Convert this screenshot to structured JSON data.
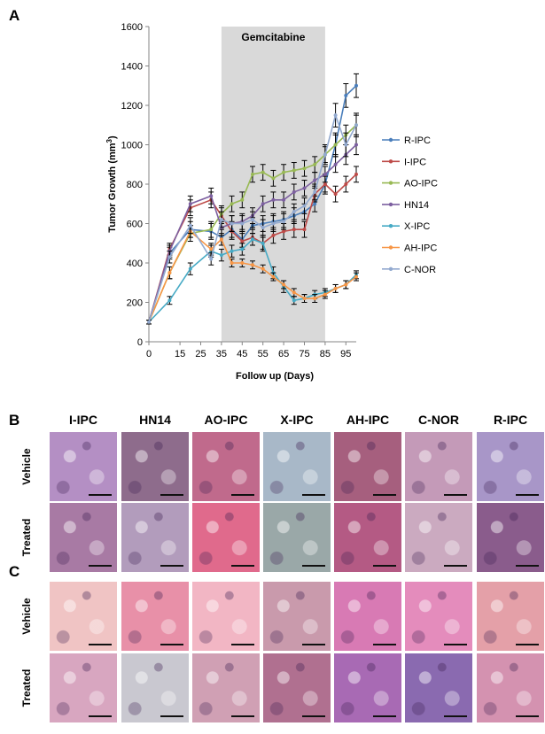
{
  "panels": {
    "a": "A",
    "b": "B",
    "c": "C"
  },
  "chart_data": {
    "type": "line",
    "annotation": "Gemcitabine",
    "shaded_x_range": [
      35,
      85
    ],
    "xlabel": "Follow up (Days)",
    "ylabel": "Tumor Growth (mm³)",
    "xlim": [
      0,
      100
    ],
    "ylim": [
      0,
      1600
    ],
    "x_ticks": [
      0,
      15,
      25,
      35,
      45,
      55,
      65,
      75,
      85,
      95
    ],
    "y_ticks": [
      0,
      200,
      400,
      600,
      800,
      1000,
      1200,
      1400,
      1600
    ],
    "grid": false,
    "legend_position": "right",
    "series": [
      {
        "name": "R-IPC",
        "color": "#4a7ebb",
        "x": [
          0,
          10,
          20,
          30,
          35,
          40,
          45,
          50,
          55,
          60,
          65,
          70,
          75,
          80,
          85,
          90,
          95,
          100
        ],
        "y": [
          100,
          450,
          570,
          560,
          530,
          570,
          520,
          590,
          600,
          610,
          620,
          640,
          660,
          700,
          800,
          1000,
          1250,
          1300
        ],
        "err": [
          10,
          30,
          40,
          40,
          40,
          40,
          40,
          40,
          40,
          40,
          40,
          40,
          40,
          40,
          50,
          60,
          60,
          60
        ]
      },
      {
        "name": "I-IPC",
        "color": "#be4b48",
        "x": [
          0,
          10,
          20,
          30,
          35,
          40,
          45,
          50,
          55,
          60,
          65,
          70,
          75,
          80,
          85,
          90,
          95,
          100
        ],
        "y": [
          100,
          470,
          680,
          720,
          640,
          560,
          510,
          530,
          500,
          540,
          560,
          570,
          570,
          750,
          800,
          750,
          800,
          850
        ],
        "err": [
          10,
          30,
          40,
          40,
          40,
          40,
          40,
          40,
          40,
          40,
          40,
          40,
          40,
          40,
          40,
          40,
          40,
          40
        ]
      },
      {
        "name": "AO-IPC",
        "color": "#98b954",
        "x": [
          0,
          10,
          20,
          30,
          35,
          40,
          45,
          50,
          55,
          60,
          65,
          70,
          75,
          80,
          85,
          90,
          95,
          100
        ],
        "y": [
          100,
          350,
          550,
          570,
          650,
          700,
          720,
          850,
          860,
          830,
          860,
          870,
          880,
          900,
          950,
          1000,
          1050,
          1100
        ],
        "err": [
          10,
          30,
          40,
          40,
          40,
          40,
          40,
          40,
          40,
          40,
          40,
          40,
          40,
          40,
          40,
          50,
          50,
          50
        ]
      },
      {
        "name": "HN14",
        "color": "#7d60a0",
        "x": [
          0,
          10,
          20,
          30,
          35,
          40,
          45,
          50,
          55,
          60,
          65,
          70,
          75,
          80,
          85,
          90,
          95,
          100
        ],
        "y": [
          100,
          460,
          700,
          740,
          580,
          600,
          610,
          640,
          700,
          720,
          720,
          760,
          780,
          820,
          850,
          900,
          950,
          1000
        ],
        "err": [
          10,
          30,
          40,
          40,
          40,
          40,
          40,
          40,
          40,
          40,
          40,
          40,
          40,
          40,
          40,
          40,
          50,
          50
        ]
      },
      {
        "name": "X-IPC",
        "color": "#46aac5",
        "x": [
          0,
          10,
          20,
          30,
          35,
          40,
          45,
          50,
          55,
          60,
          65,
          70,
          75,
          80,
          85,
          90,
          95,
          100
        ],
        "y": [
          100,
          210,
          370,
          460,
          440,
          460,
          470,
          520,
          500,
          350,
          280,
          210,
          220,
          240,
          250,
          270,
          290,
          340
        ],
        "err": [
          10,
          20,
          30,
          30,
          30,
          30,
          30,
          30,
          30,
          30,
          30,
          20,
          20,
          20,
          20,
          20,
          20,
          20
        ]
      },
      {
        "name": "AH-IPC",
        "color": "#f79646",
        "x": [
          0,
          10,
          20,
          30,
          35,
          40,
          45,
          50,
          55,
          60,
          65,
          70,
          75,
          80,
          85,
          90,
          95,
          100
        ],
        "y": [
          100,
          350,
          560,
          470,
          520,
          400,
          400,
          390,
          370,
          330,
          290,
          250,
          220,
          220,
          240,
          270,
          290,
          330
        ],
        "err": [
          10,
          30,
          30,
          30,
          30,
          20,
          20,
          20,
          20,
          20,
          20,
          20,
          20,
          20,
          20,
          20,
          20,
          20
        ]
      },
      {
        "name": "C-NOR",
        "color": "#92a9cf",
        "x": [
          0,
          10,
          20,
          30,
          35,
          40,
          45,
          50,
          55,
          60,
          65,
          70,
          75,
          80,
          85,
          90,
          95,
          100
        ],
        "y": [
          100,
          430,
          590,
          420,
          620,
          600,
          600,
          620,
          580,
          600,
          610,
          660,
          690,
          760,
          950,
          1150,
          1000,
          1100
        ],
        "err": [
          10,
          30,
          40,
          30,
          40,
          40,
          40,
          40,
          40,
          40,
          40,
          40,
          40,
          40,
          50,
          60,
          60,
          60
        ]
      }
    ]
  },
  "histology": {
    "columns": [
      "I-IPC",
      "HN14",
      "AO-IPC",
      "X-IPC",
      "AH-IPC",
      "C-NOR",
      "R-IPC"
    ],
    "rows_b": [
      "Vehicle",
      "Treated"
    ],
    "rows_c": [
      "Vehicle",
      "Treated"
    ],
    "stain_b": [
      [
        "#b48fc4",
        "#8e6c8c",
        "#c06a8c",
        "#a8b8c8",
        "#a65f7e",
        "#c49ab8",
        "#a896c8"
      ],
      [
        "#a87aa4",
        "#b29cbc",
        "#e06a8c",
        "#9aa8a8",
        "#b45a84",
        "#cbaac0",
        "#8a5c8c"
      ]
    ],
    "stain_c": [
      [
        "#f0c4c4",
        "#e890a8",
        "#f2b6c4",
        "#c99aac",
        "#d87ab4",
        "#e48cbc",
        "#e4a0a8"
      ],
      [
        "#d8a6c0",
        "#c9c8d0",
        "#d0a0b4",
        "#b07090",
        "#a86ab4",
        "#8a6ab0",
        "#d492b0"
      ]
    ]
  }
}
